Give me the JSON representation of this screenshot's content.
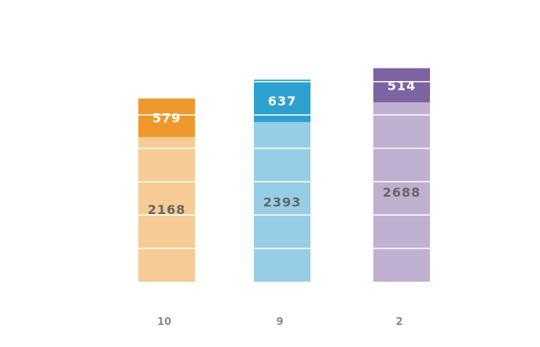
{
  "chart_data": {
    "type": "bar",
    "stacked": true,
    "categories": [
      "10",
      "9",
      "2"
    ],
    "series": [
      {
        "values": [
          2168,
          2393,
          2688
        ],
        "colors": [
          "#f6cb96",
          "#97cee5",
          "#bfb0d0"
        ],
        "label_color": "#666666"
      },
      {
        "values": [
          579,
          637,
          514
        ],
        "colors": [
          "#ee992c",
          "#2ca1cf",
          "#7d63a1"
        ],
        "label_color": "#ffffff"
      }
    ],
    "ylim": [
      0,
      3400
    ],
    "grid": true,
    "gridline_values": [
      500,
      1000,
      1500,
      2000,
      2500,
      3000
    ],
    "gridline_color": "#ffffff",
    "legend": "none"
  }
}
